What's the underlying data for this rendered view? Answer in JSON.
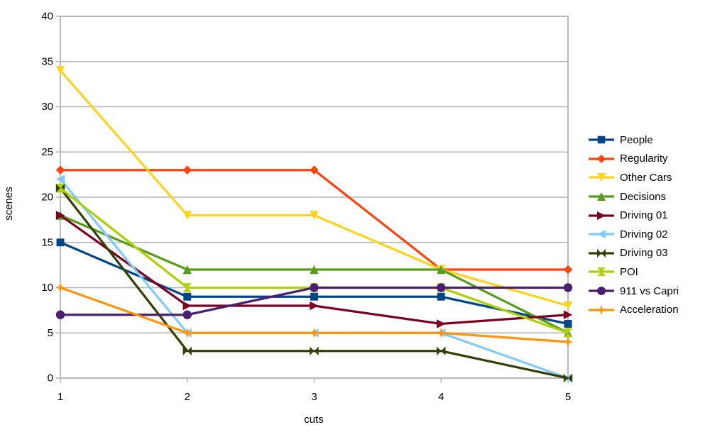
{
  "chart_data": {
    "type": "line",
    "title": "",
    "xlabel": "cuts",
    "ylabel": "scenes",
    "x": [
      1,
      2,
      3,
      4,
      5
    ],
    "x_tick_labels": [
      "1",
      "2",
      "3",
      "4",
      "5"
    ],
    "y_ticks": [
      0,
      5,
      10,
      15,
      20,
      25,
      30,
      35,
      40
    ],
    "ylim": [
      0,
      40
    ],
    "xlim": [
      1,
      5
    ],
    "grid": "horizontal-only",
    "legend_position": "right",
    "axis_color": "#b3b3b3",
    "text_color": "#000000",
    "background_color": "#ffffff",
    "series": [
      {
        "name": "People",
        "color": "#004586",
        "marker": "square",
        "values": [
          15,
          9,
          9,
          9,
          6
        ]
      },
      {
        "name": "Regularity",
        "color": "#FF420E",
        "marker": "diamond",
        "values": [
          23,
          23,
          23,
          12,
          12
        ]
      },
      {
        "name": "Other Cars",
        "color": "#FFD320",
        "marker": "arrow-down",
        "values": [
          34,
          18,
          18,
          12,
          8
        ]
      },
      {
        "name": "Decisions",
        "color": "#579D1C",
        "marker": "arrow-up",
        "values": [
          18,
          12,
          12,
          12,
          5
        ]
      },
      {
        "name": "Driving 01",
        "color": "#7E0021",
        "marker": "arrow-right",
        "values": [
          18,
          8,
          8,
          6,
          7
        ]
      },
      {
        "name": "Driving 02",
        "color": "#83CAFF",
        "marker": "arrow-left",
        "values": [
          22,
          5,
          5,
          5,
          0
        ]
      },
      {
        "name": "Driving 03",
        "color": "#314004",
        "marker": "bow-tie",
        "values": [
          21,
          3,
          3,
          3,
          0
        ]
      },
      {
        "name": "POI",
        "color": "#AECF00",
        "marker": "sand-glass",
        "values": [
          21,
          10,
          10,
          10,
          5
        ]
      },
      {
        "name": "911 vs Capri",
        "color": "#4B1F6F",
        "marker": "circle",
        "values": [
          7,
          7,
          10,
          10,
          10
        ]
      },
      {
        "name": "Acceleration",
        "color": "#FF950E",
        "marker": "star",
        "values": [
          10,
          5,
          5,
          5,
          4
        ]
      }
    ]
  }
}
